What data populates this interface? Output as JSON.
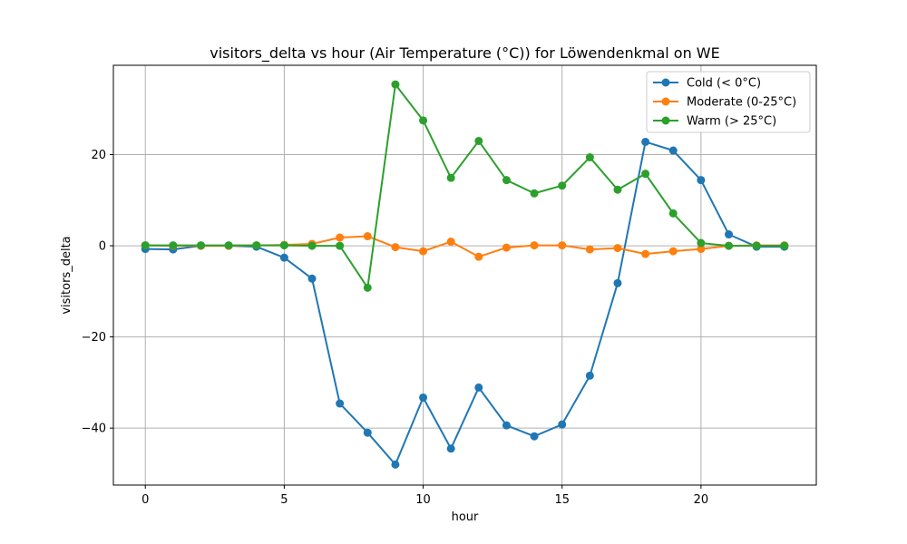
{
  "chart_data": {
    "type": "line",
    "title": "visitors_delta vs hour (Air Temperature (°C)) for Löwendenkmal on WE",
    "xlabel": "hour",
    "ylabel": "visitors_delta",
    "x": [
      0,
      1,
      2,
      3,
      4,
      5,
      6,
      7,
      8,
      9,
      10,
      11,
      12,
      13,
      14,
      15,
      16,
      17,
      18,
      19,
      20,
      21,
      22,
      23
    ],
    "xlim": [
      -1.15,
      24.15
    ],
    "ylim": [
      -52.5,
      39.6
    ],
    "xticks": [
      0,
      5,
      10,
      15,
      20
    ],
    "yticks": [
      -40,
      -20,
      0,
      20
    ],
    "grid": true,
    "legend_position": "top-right",
    "series": [
      {
        "name": "Cold (< 0°C)",
        "color": "#1f77b4",
        "values": [
          -0.7,
          -0.8,
          0.0,
          0.0,
          -0.2,
          -2.6,
          -7.2,
          -34.6,
          -41.0,
          -48.0,
          -33.3,
          -44.5,
          -31.1,
          -39.4,
          -41.8,
          -39.2,
          -28.5,
          -8.2,
          22.8,
          20.9,
          14.4,
          2.5,
          -0.2,
          -0.2
        ]
      },
      {
        "name": "Moderate (0-25°C)",
        "color": "#ff7f0e",
        "values": [
          0.1,
          0.0,
          0.0,
          0.0,
          0.1,
          0.2,
          0.4,
          1.8,
          2.1,
          -0.3,
          -1.2,
          0.9,
          -2.4,
          -0.4,
          0.1,
          0.1,
          -0.8,
          -0.5,
          -1.8,
          -1.2,
          -0.7,
          0.0,
          0.1,
          0.1
        ]
      },
      {
        "name": "Warm (> 25°C)",
        "color": "#2ca02c",
        "values": [
          0.1,
          0.1,
          0.1,
          0.1,
          0.1,
          0.1,
          0.0,
          0.0,
          -9.2,
          35.4,
          27.5,
          14.9,
          23.0,
          14.4,
          11.5,
          13.2,
          19.4,
          12.3,
          15.8,
          7.1,
          0.6,
          0.0,
          0.0,
          0.0
        ]
      }
    ]
  }
}
